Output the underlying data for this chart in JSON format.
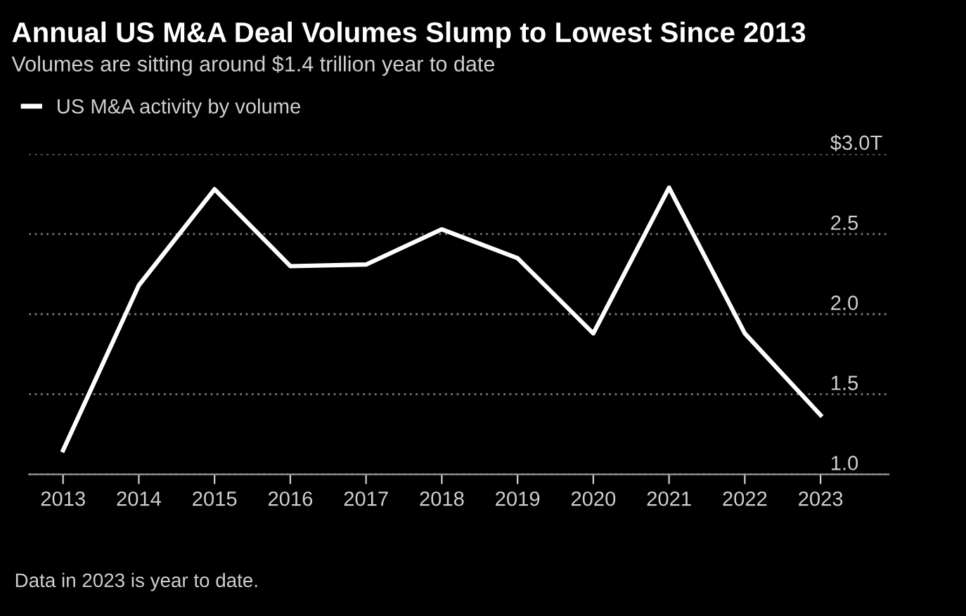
{
  "chart_data": {
    "type": "line",
    "title": "Annual US M&A Deal Volumes Slump to Lowest Since 2013",
    "subtitle": "Volumes are sitting around $1.4 trillion year to date",
    "categories": [
      "2013",
      "2014",
      "2015",
      "2016",
      "2017",
      "2018",
      "2019",
      "2020",
      "2021",
      "2022",
      "2023"
    ],
    "series": [
      {
        "name": "US M&A activity by volume",
        "color": "#ffffff",
        "values": [
          1.15,
          2.18,
          2.78,
          2.3,
          2.31,
          2.53,
          2.35,
          1.88,
          2.79,
          1.88,
          1.37
        ]
      }
    ],
    "ylim": [
      1.0,
      3.0
    ],
    "yticks": [
      {
        "value": 1,
        "label": "1.0"
      },
      1.5,
      {
        "value": 2,
        "label": "2.0"
      },
      2.5,
      {
        "value": 3.0,
        "label": "$3.0T"
      }
    ],
    "grid": "y",
    "legend": "top left",
    "marker": "none",
    "line_style": "solid",
    "annotations": [
      "Data in 2023 is year to date."
    ]
  }
}
